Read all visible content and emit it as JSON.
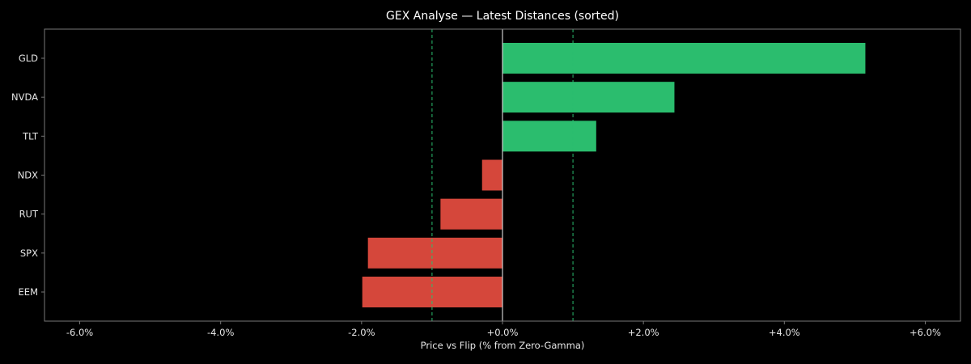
{
  "chart_data": {
    "type": "bar",
    "orientation": "horizontal",
    "title": "GEX Analyse — Latest Distances (sorted)",
    "xlabel": "Price vs Flip (% from Zero-Gamma)",
    "ylabel": "",
    "categories": [
      "GLD",
      "NVDA",
      "TLT",
      "NDX",
      "RUT",
      "SPX",
      "EEM"
    ],
    "values": [
      5.15,
      2.44,
      1.33,
      -0.29,
      -0.88,
      -1.91,
      -1.99
    ],
    "xlim": [
      -6.5,
      6.5
    ],
    "x_ticks": [
      -6,
      -4,
      -2,
      0,
      2,
      4,
      6
    ],
    "x_tick_labels": [
      "-6.0%",
      "-4.0%",
      "-2.0%",
      "+0.0%",
      "+2.0%",
      "+4.0%",
      "+6.0%"
    ],
    "reference_lines": [
      {
        "x": 0,
        "style": "solid",
        "color": "#cccccc"
      },
      {
        "x": -1,
        "style": "dashed",
        "color": "#2bbd6e"
      },
      {
        "x": 1,
        "style": "dashed",
        "color": "#2bbd6e"
      }
    ],
    "colors": {
      "positive": "#2bbd6e",
      "negative": "#d5473b",
      "background": "#000000",
      "axes_frame": "#777777",
      "text": "#e6e6e6"
    },
    "grid": false,
    "legend": "none"
  }
}
